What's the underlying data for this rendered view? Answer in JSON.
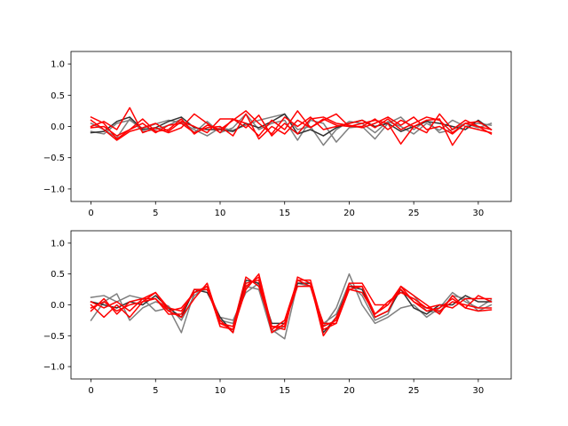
{
  "chart_data": [
    {
      "type": "line",
      "title": "",
      "xlabel": "",
      "ylabel": "",
      "xlim": [
        -1.55,
        32.55
      ],
      "ylim": [
        -1.2,
        1.2
      ],
      "xticks": [
        0,
        5,
        10,
        15,
        20,
        25,
        30
      ],
      "yticks": [
        -1.0,
        -0.5,
        0.0,
        0.5,
        1.0
      ],
      "xtick_labels": [
        "0",
        "5",
        "10",
        "15",
        "20",
        "25",
        "30"
      ],
      "ytick_labels": [
        "−1.0",
        "−0.5",
        "0.0",
        "0.5",
        "1.0"
      ],
      "grid": false,
      "x": [
        0,
        1,
        2,
        3,
        4,
        5,
        6,
        7,
        8,
        9,
        10,
        11,
        12,
        13,
        14,
        15,
        16,
        17,
        18,
        19,
        20,
        21,
        22,
        23,
        24,
        25,
        26,
        27,
        28,
        29,
        30,
        31
      ],
      "series": [
        {
          "color": "#7f7f7f",
          "values": [
            -0.08,
            -0.12,
            0.05,
            0.1,
            -0.03,
            0.04,
            0.1,
            0.06,
            -0.05,
            -0.15,
            -0.02,
            -0.06,
            0.02,
            0.1,
            0.15,
            0.2,
            -0.05,
            0.0,
            -0.3,
            -0.05,
            0.08,
            0.05,
            -0.1,
            0.08,
            0.0,
            -0.12,
            0.05,
            -0.06,
            0.1,
            0.0,
            0.05,
            0.02
          ]
        },
        {
          "color": "#7f7f7f",
          "values": [
            0.05,
            -0.05,
            -0.18,
            0.12,
            -0.08,
            -0.05,
            0.02,
            0.12,
            -0.1,
            0.08,
            -0.1,
            -0.02,
            0.2,
            -0.05,
            0.05,
            0.1,
            -0.22,
            0.1,
            0.05,
            -0.25,
            -0.02,
            0.0,
            -0.2,
            0.05,
            0.15,
            -0.05,
            0.1,
            -0.1,
            -0.05,
            0.05,
            -0.02,
            0.05
          ]
        },
        {
          "color": "#333333",
          "values": [
            -0.1,
            -0.08,
            0.08,
            0.15,
            -0.05,
            -0.02,
            0.08,
            0.15,
            -0.02,
            -0.05,
            -0.05,
            -0.08,
            0.05,
            -0.02,
            0.08,
            0.2,
            -0.12,
            -0.05,
            -0.15,
            -0.02,
            0.05,
            0.1,
            0.0,
            0.05,
            -0.08,
            0.0,
            0.08,
            0.05,
            0.0,
            -0.05,
            0.1,
            -0.05
          ]
        },
        {
          "color": "#ff0000",
          "values": [
            0.15,
            0.05,
            -0.2,
            -0.05,
            0.12,
            -0.08,
            -0.05,
            0.12,
            -0.12,
            0.02,
            -0.05,
            0.1,
            0.25,
            0.05,
            -0.12,
            0.15,
            0.0,
            0.15,
            -0.05,
            0.0,
            0.05,
            0.1,
            -0.02,
            0.12,
            -0.05,
            0.05,
            0.15,
            0.1,
            -0.1,
            0.05,
            0.0,
            -0.12
          ]
        },
        {
          "color": "#ff0000",
          "values": [
            0.0,
            0.08,
            -0.05,
            0.3,
            -0.1,
            -0.02,
            -0.1,
            -0.02,
            0.2,
            0.05,
            -0.1,
            0.12,
            0.05,
            -0.15,
            0.1,
            -0.05,
            0.25,
            -0.02,
            0.1,
            0.2,
            0.0,
            0.05,
            0.1,
            0.05,
            -0.28,
            0.0,
            0.1,
            0.12,
            -0.3,
            0.0,
            -0.05,
            -0.1
          ]
        },
        {
          "color": "#ff0000",
          "values": [
            0.1,
            -0.05,
            -0.22,
            -0.08,
            -0.02,
            0.05,
            -0.08,
            0.08,
            0.0,
            -0.1,
            0.12,
            0.12,
            -0.02,
            0.18,
            -0.15,
            0.05,
            -0.12,
            0.12,
            0.15,
            0.05,
            0.02,
            -0.02,
            0.05,
            0.15,
            0.02,
            0.15,
            -0.05,
            0.0,
            -0.12,
            0.05,
            0.08,
            -0.05
          ]
        },
        {
          "color": "#ff0000",
          "values": [
            -0.02,
            0.0,
            -0.15,
            -0.05,
            0.05,
            -0.1,
            0.02,
            0.05,
            -0.1,
            -0.02,
            0.0,
            -0.15,
            0.2,
            -0.2,
            0.0,
            -0.12,
            0.1,
            -0.02,
            0.12,
            0.02,
            0.0,
            0.0,
            0.12,
            -0.05,
            0.1,
            0.0,
            -0.1,
            0.2,
            -0.05,
            0.1,
            0.0,
            -0.05
          ]
        }
      ]
    },
    {
      "type": "line",
      "title": "",
      "xlabel": "",
      "ylabel": "",
      "xlim": [
        -1.55,
        32.55
      ],
      "ylim": [
        -1.2,
        1.2
      ],
      "xticks": [
        0,
        5,
        10,
        15,
        20,
        25,
        30
      ],
      "yticks": [
        -1.0,
        -0.5,
        0.0,
        0.5,
        1.0
      ],
      "xtick_labels": [
        "0",
        "5",
        "10",
        "15",
        "20",
        "25",
        "30"
      ],
      "ytick_labels": [
        "−1.0",
        "−0.5",
        "0.0",
        "0.5",
        "1.0"
      ],
      "grid": false,
      "x": [
        0,
        1,
        2,
        3,
        4,
        5,
        6,
        7,
        8,
        9,
        10,
        11,
        12,
        13,
        14,
        15,
        16,
        17,
        18,
        19,
        20,
        21,
        22,
        23,
        24,
        25,
        26,
        27,
        28,
        29,
        30,
        31
      ],
      "series": [
        {
          "color": "#7f7f7f",
          "values": [
            0.12,
            0.15,
            0.05,
            0.15,
            0.1,
            -0.1,
            -0.05,
            -0.45,
            0.2,
            0.25,
            -0.2,
            -0.25,
            0.2,
            0.35,
            -0.4,
            -0.55,
            0.35,
            0.3,
            -0.35,
            -0.05,
            0.5,
            0.0,
            -0.3,
            -0.2,
            -0.05,
            0.0,
            -0.2,
            -0.05,
            0.2,
            0.05,
            -0.05,
            0.08
          ]
        },
        {
          "color": "#7f7f7f",
          "values": [
            -0.25,
            0.05,
            0.18,
            -0.25,
            -0.05,
            0.05,
            -0.02,
            -0.25,
            0.15,
            0.3,
            -0.25,
            -0.3,
            0.3,
            0.25,
            -0.45,
            -0.35,
            0.4,
            0.3,
            -0.3,
            -0.15,
            0.35,
            0.15,
            -0.25,
            -0.15,
            0.3,
            0.15,
            -0.1,
            -0.12,
            0.15,
            0.1,
            -0.1,
            0.0
          ]
        },
        {
          "color": "#333333",
          "values": [
            0.05,
            0.0,
            -0.05,
            0.05,
            0.0,
            0.15,
            -0.05,
            -0.2,
            0.25,
            0.2,
            -0.2,
            -0.45,
            0.4,
            0.35,
            -0.3,
            -0.3,
            0.35,
            0.35,
            -0.45,
            -0.2,
            0.3,
            0.25,
            -0.2,
            -0.1,
            0.25,
            -0.05,
            -0.15,
            0.0,
            0.0,
            0.15,
            0.05,
            0.05
          ]
        },
        {
          "color": "#ff0000",
          "values": [
            0.0,
            -0.2,
            0.0,
            -0.2,
            0.05,
            0.2,
            -0.05,
            -0.1,
            0.2,
            0.3,
            -0.25,
            -0.45,
            0.35,
            0.4,
            -0.4,
            -0.25,
            0.4,
            0.3,
            -0.4,
            -0.3,
            0.35,
            0.35,
            0.0,
            0.0,
            0.3,
            0.15,
            0.0,
            -0.15,
            0.15,
            -0.05,
            0.15,
            0.05
          ]
        },
        {
          "color": "#ff0000",
          "values": [
            -0.1,
            0.1,
            -0.15,
            0.05,
            0.1,
            0.2,
            -0.1,
            -0.2,
            0.1,
            0.35,
            -0.3,
            -0.4,
            0.25,
            0.5,
            -0.35,
            -0.4,
            0.45,
            0.35,
            -0.5,
            -0.2,
            0.25,
            0.3,
            -0.15,
            0.05,
            0.2,
            0.1,
            -0.05,
            -0.1,
            0.05,
            0.0,
            -0.05,
            -0.05
          ]
        },
        {
          "color": "#ff0000",
          "values": [
            -0.05,
            0.05,
            -0.1,
            0.0,
            0.05,
            0.1,
            -0.15,
            -0.15,
            0.25,
            0.25,
            -0.3,
            -0.35,
            0.45,
            0.3,
            -0.35,
            -0.35,
            0.4,
            0.4,
            -0.35,
            -0.25,
            0.3,
            0.3,
            -0.2,
            -0.1,
            0.3,
            0.05,
            -0.1,
            -0.05,
            0.1,
            -0.05,
            -0.1,
            -0.08
          ]
        },
        {
          "color": "#ff0000",
          "values": [
            0.05,
            -0.05,
            0.05,
            -0.1,
            0.1,
            0.1,
            -0.1,
            -0.05,
            0.2,
            0.3,
            -0.35,
            -0.4,
            0.3,
            0.45,
            -0.45,
            -0.3,
            0.3,
            0.3,
            -0.3,
            -0.3,
            0.25,
            0.2,
            -0.15,
            0.0,
            0.25,
            0.05,
            -0.05,
            0.0,
            -0.05,
            0.1,
            0.1,
            0.1
          ]
        }
      ]
    }
  ]
}
